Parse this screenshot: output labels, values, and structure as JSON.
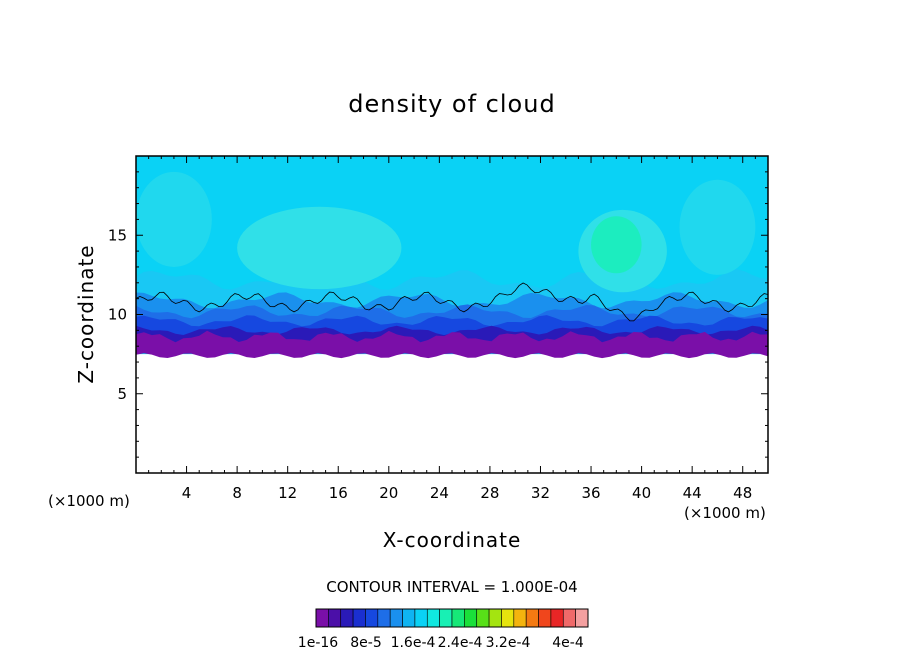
{
  "chart_data": {
    "type": "heatmap",
    "title": "density of cloud",
    "xlabel": "X-coordinate",
    "ylabel": "Z-coordinate",
    "x_unit_left": "(×1000 m)",
    "x_unit_right": "(×1000 m)",
    "xlim": [
      0,
      50
    ],
    "ylim": [
      0,
      20
    ],
    "x_ticks": [
      4,
      8,
      12,
      16,
      20,
      24,
      28,
      32,
      36,
      40,
      44,
      48
    ],
    "y_ticks": [
      5,
      10,
      15
    ],
    "contour_interval_text": "CONTOUR INTERVAL = 1.000E-04",
    "colorbar": {
      "levels": 20,
      "colors": [
        "#7a0fa8",
        "#4b0fa8",
        "#2a1ab8",
        "#1a2fd0",
        "#1648e0",
        "#1e6ee8",
        "#1a90ee",
        "#0fb4f2",
        "#0ad2f5",
        "#10e8e0",
        "#18f0b4",
        "#16e878",
        "#1ae03a",
        "#58e018",
        "#a4e410",
        "#e6e40e",
        "#f4b40e",
        "#f47a12",
        "#f0461c",
        "#e82626",
        "#f06a6a",
        "#f4a0a0"
      ],
      "tick_labels": [
        "1e-16",
        "8e-5",
        "1.6e-4",
        "2.4e-4",
        "3.2e-4",
        "4e-4"
      ]
    },
    "field_colors": {
      "background": "#0ad2f5",
      "light_region": "#30e0e8",
      "patch": "#18f0b4",
      "layer_1": "#1a90ee",
      "layer_2": "#1e6ee8",
      "layer_3": "#1648e0",
      "base": "#7a0fa8"
    },
    "cloud_base_z": 7.5,
    "upper_contour_z": 10.8
  }
}
